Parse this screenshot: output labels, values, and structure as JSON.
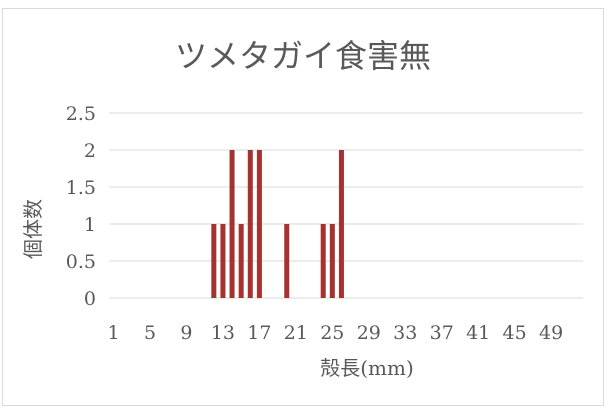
{
  "chart_data": {
    "type": "bar",
    "title": "ツメタガイ食害無",
    "xlabel": "殻長(mm)",
    "ylabel": "個体数",
    "ylim": [
      0,
      2.5
    ],
    "yticks": [
      "0",
      "0.5",
      "1",
      "1.5",
      "2",
      "2.5"
    ],
    "x_range": [
      1,
      52
    ],
    "xtick_labels": [
      "1",
      "5",
      "9",
      "13",
      "17",
      "21",
      "25",
      "29",
      "33",
      "37",
      "41",
      "45",
      "49"
    ],
    "grid": true,
    "legend": "none",
    "bar_color": "#a5322f",
    "categories": [
      1,
      2,
      3,
      4,
      5,
      6,
      7,
      8,
      9,
      10,
      11,
      12,
      13,
      14,
      15,
      16,
      17,
      18,
      19,
      20,
      21,
      22,
      23,
      24,
      25,
      26,
      27,
      28,
      29,
      30,
      31,
      32,
      33,
      34,
      35,
      36,
      37,
      38,
      39,
      40,
      41,
      42,
      43,
      44,
      45,
      46,
      47,
      48,
      49,
      50,
      51,
      52
    ],
    "values": [
      0,
      0,
      0,
      0,
      0,
      0,
      0,
      0,
      0,
      0,
      0,
      1,
      1,
      2,
      1,
      2,
      2,
      0,
      0,
      1,
      0,
      0,
      0,
      1,
      1,
      2,
      0,
      0,
      0,
      0,
      0,
      0,
      0,
      0,
      0,
      0,
      0,
      0,
      0,
      0,
      0,
      0,
      0,
      0,
      0,
      0,
      0,
      0,
      0,
      0,
      0,
      0
    ]
  }
}
